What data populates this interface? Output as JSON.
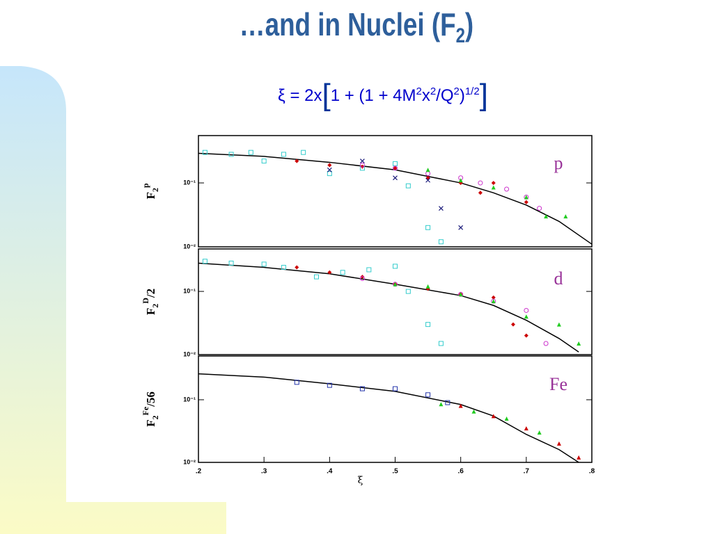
{
  "header": {
    "title": "…and in Nuclei (F",
    "title_sub": "2",
    "title_end": ")",
    "formula": {
      "start": "ξ = 2x",
      "open": "[",
      "a": "1 + (1 + 4M",
      "s1": "2",
      "b": "x",
      "s2": "2",
      "c": "/Q",
      "s3": "2",
      "d": ")",
      "s4": "1/2",
      "close": "]"
    }
  },
  "chart_data": [
    {
      "type": "scatter",
      "label": "p",
      "log_y": true,
      "ylabel": {
        "main": "F",
        "sup": "p",
        "sub": "2"
      },
      "xlim": [
        0.2,
        0.8
      ],
      "ylim": [
        0.01,
        0.55
      ],
      "yticks": [
        {
          "value": 0.1,
          "label": "10⁻¹"
        },
        {
          "value": 0.01,
          "label": "10⁻²"
        }
      ],
      "curve": {
        "color": "#000000",
        "x": [
          0.2,
          0.3,
          0.4,
          0.5,
          0.6,
          0.65,
          0.7,
          0.75,
          0.8
        ],
        "values": [
          0.29,
          0.26,
          0.21,
          0.16,
          0.1,
          0.07,
          0.045,
          0.025,
          0.011
        ]
      },
      "series": [
        {
          "color": "#33cccc",
          "marker": "square",
          "x": [
            0.21,
            0.25,
            0.28,
            0.3,
            0.33,
            0.36,
            0.4,
            0.45,
            0.5,
            0.52,
            0.55,
            0.57
          ],
          "values": [
            0.3,
            0.28,
            0.3,
            0.22,
            0.28,
            0.3,
            0.14,
            0.17,
            0.2,
            0.09,
            0.02,
            0.012
          ]
        },
        {
          "color": "#cc0000",
          "marker": "diamond",
          "x": [
            0.35,
            0.4,
            0.45,
            0.5,
            0.55,
            0.6,
            0.63,
            0.65,
            0.7
          ],
          "values": [
            0.22,
            0.19,
            0.18,
            0.17,
            0.12,
            0.1,
            0.07,
            0.1,
            0.05
          ]
        },
        {
          "color": "#cc33cc",
          "marker": "circle",
          "x": [
            0.45,
            0.5,
            0.55,
            0.6,
            0.63,
            0.67,
            0.7,
            0.72
          ],
          "values": [
            0.19,
            0.17,
            0.14,
            0.12,
            0.1,
            0.08,
            0.06,
            0.04
          ]
        },
        {
          "color": "#22cc22",
          "marker": "triangle",
          "x": [
            0.55,
            0.6,
            0.65,
            0.7,
            0.73,
            0.76
          ],
          "values": [
            0.16,
            0.11,
            0.085,
            0.06,
            0.03,
            0.03
          ]
        },
        {
          "color": "#1a1a7a",
          "marker": "cross",
          "x": [
            0.4,
            0.45,
            0.5,
            0.55,
            0.57,
            0.6
          ],
          "values": [
            0.16,
            0.22,
            0.12,
            0.11,
            0.04,
            0.02
          ]
        }
      ]
    },
    {
      "type": "scatter",
      "label": "d",
      "log_y": true,
      "ylabel": {
        "main": "F",
        "sup": "D",
        "sub": "2",
        "after": "/2"
      },
      "xlim": [
        0.2,
        0.8
      ],
      "ylim": [
        0.01,
        0.47
      ],
      "yticks": [
        {
          "value": 0.1,
          "label": "10⁻¹"
        },
        {
          "value": 0.01,
          "label": "10⁻²"
        }
      ],
      "curve": {
        "color": "#000000",
        "x": [
          0.2,
          0.3,
          0.4,
          0.5,
          0.6,
          0.65,
          0.7,
          0.75,
          0.78
        ],
        "values": [
          0.28,
          0.24,
          0.19,
          0.13,
          0.086,
          0.06,
          0.035,
          0.018,
          0.011
        ]
      },
      "series": [
        {
          "color": "#33cccc",
          "marker": "square",
          "x": [
            0.21,
            0.25,
            0.3,
            0.33,
            0.38,
            0.42,
            0.46,
            0.5,
            0.52,
            0.55,
            0.57
          ],
          "values": [
            0.3,
            0.28,
            0.27,
            0.24,
            0.17,
            0.2,
            0.22,
            0.25,
            0.1,
            0.03,
            0.015
          ]
        },
        {
          "color": "#cc0000",
          "marker": "diamond",
          "x": [
            0.35,
            0.4,
            0.45,
            0.5,
            0.55,
            0.6,
            0.65,
            0.68,
            0.7
          ],
          "values": [
            0.24,
            0.2,
            0.17,
            0.13,
            0.11,
            0.09,
            0.08,
            0.03,
            0.02
          ]
        },
        {
          "color": "#cc33cc",
          "marker": "circle",
          "x": [
            0.45,
            0.5,
            0.6,
            0.65,
            0.7,
            0.73
          ],
          "values": [
            0.16,
            0.13,
            0.09,
            0.07,
            0.05,
            0.015
          ]
        },
        {
          "color": "#22cc22",
          "marker": "triangle",
          "x": [
            0.5,
            0.55,
            0.6,
            0.65,
            0.7,
            0.75,
            0.78
          ],
          "values": [
            0.13,
            0.12,
            0.09,
            0.07,
            0.04,
            0.03,
            0.015
          ]
        }
      ]
    },
    {
      "type": "scatter",
      "label": "Fe",
      "log_y": true,
      "ylabel": {
        "main": "F",
        "sup": "Fe",
        "sub": "2",
        "after": "/56"
      },
      "xlim": [
        0.2,
        0.8
      ],
      "ylim": [
        0.01,
        0.5
      ],
      "yticks": [
        {
          "value": 0.1,
          "label": "10⁻¹"
        },
        {
          "value": 0.01,
          "label": "10⁻²"
        }
      ],
      "xticks": [
        {
          "value": 0.2,
          "label": ".2"
        },
        {
          "value": 0.3,
          "label": ".3"
        },
        {
          "value": 0.4,
          "label": ".4"
        },
        {
          "value": 0.5,
          "label": ".5"
        },
        {
          "value": 0.6,
          "label": ".6"
        },
        {
          "value": 0.7,
          "label": ".7"
        },
        {
          "value": 0.8,
          "label": ".8"
        }
      ],
      "xlabel": "ξ",
      "curve": {
        "color": "#000000",
        "x": [
          0.2,
          0.3,
          0.4,
          0.5,
          0.6,
          0.65,
          0.7,
          0.75,
          0.78
        ],
        "values": [
          0.26,
          0.23,
          0.18,
          0.136,
          0.084,
          0.055,
          0.028,
          0.016,
          0.01
        ]
      },
      "series": [
        {
          "color": "#2233aa",
          "marker": "square",
          "x": [
            0.35,
            0.4,
            0.45,
            0.5,
            0.55,
            0.58
          ],
          "values": [
            0.19,
            0.17,
            0.15,
            0.15,
            0.12,
            0.09
          ]
        },
        {
          "color": "#22cc22",
          "marker": "triangle",
          "x": [
            0.57,
            0.62,
            0.67,
            0.72
          ],
          "values": [
            0.085,
            0.065,
            0.05,
            0.03
          ]
        },
        {
          "color": "#cc0000",
          "marker": "triangle",
          "x": [
            0.6,
            0.65,
            0.7,
            0.75,
            0.78
          ],
          "values": [
            0.08,
            0.055,
            0.035,
            0.02,
            0.012
          ]
        }
      ]
    }
  ]
}
